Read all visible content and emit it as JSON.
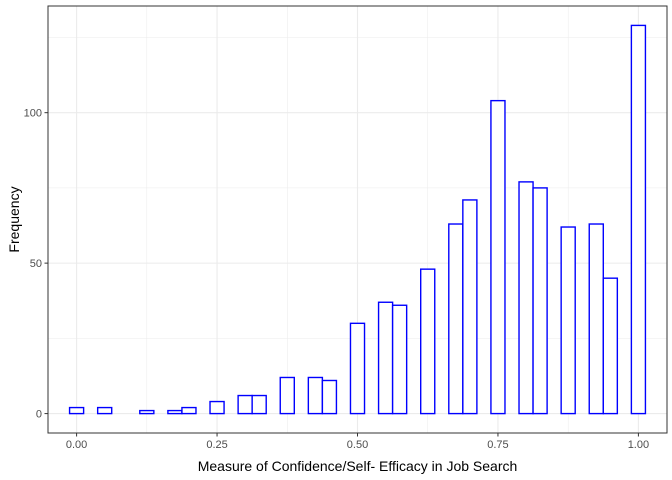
{
  "chart_data": {
    "type": "bar",
    "subtype": "histogram",
    "xlabel": "Measure of Confidence/Self- Efficacy in Job Search",
    "ylabel": "Frequency",
    "xlim": [
      -0.0125,
      1.0125
    ],
    "ylim": [
      0,
      130
    ],
    "x_ticks": [
      0.0,
      0.25,
      0.5,
      0.75,
      1.0
    ],
    "x_tick_labels": [
      "0.00",
      "0.25",
      "0.50",
      "0.75",
      "1.00"
    ],
    "y_ticks": [
      0,
      50,
      100
    ],
    "y_tick_labels": [
      "0",
      "50",
      "100"
    ],
    "bin_width": 0.025,
    "bins": [
      {
        "start": -0.0125,
        "end": 0.0125,
        "count": 2
      },
      {
        "start": 0.0125,
        "end": 0.0375,
        "count": 0
      },
      {
        "start": 0.0375,
        "end": 0.0625,
        "count": 2
      },
      {
        "start": 0.0625,
        "end": 0.0875,
        "count": 0
      },
      {
        "start": 0.0875,
        "end": 0.1125,
        "count": 0
      },
      {
        "start": 0.1125,
        "end": 0.1375,
        "count": 1
      },
      {
        "start": 0.1375,
        "end": 0.1625,
        "count": 0
      },
      {
        "start": 0.1625,
        "end": 0.1875,
        "count": 1
      },
      {
        "start": 0.1875,
        "end": 0.2125,
        "count": 2
      },
      {
        "start": 0.2125,
        "end": 0.2375,
        "count": 0
      },
      {
        "start": 0.2375,
        "end": 0.2625,
        "count": 4
      },
      {
        "start": 0.2625,
        "end": 0.2875,
        "count": 0
      },
      {
        "start": 0.2875,
        "end": 0.3125,
        "count": 6
      },
      {
        "start": 0.3125,
        "end": 0.3375,
        "count": 6
      },
      {
        "start": 0.3375,
        "end": 0.3625,
        "count": 0
      },
      {
        "start": 0.3625,
        "end": 0.3875,
        "count": 12
      },
      {
        "start": 0.3875,
        "end": 0.4125,
        "count": 0
      },
      {
        "start": 0.4125,
        "end": 0.4375,
        "count": 12
      },
      {
        "start": 0.4375,
        "end": 0.4625,
        "count": 11
      },
      {
        "start": 0.4625,
        "end": 0.4875,
        "count": 0
      },
      {
        "start": 0.4875,
        "end": 0.5125,
        "count": 30
      },
      {
        "start": 0.5125,
        "end": 0.5375,
        "count": 0
      },
      {
        "start": 0.5375,
        "end": 0.5625,
        "count": 37
      },
      {
        "start": 0.5625,
        "end": 0.5875,
        "count": 36
      },
      {
        "start": 0.5875,
        "end": 0.6125,
        "count": 0
      },
      {
        "start": 0.6125,
        "end": 0.6375,
        "count": 48
      },
      {
        "start": 0.6375,
        "end": 0.6625,
        "count": 0
      },
      {
        "start": 0.6625,
        "end": 0.6875,
        "count": 63
      },
      {
        "start": 0.6875,
        "end": 0.7125,
        "count": 71
      },
      {
        "start": 0.7125,
        "end": 0.7375,
        "count": 0
      },
      {
        "start": 0.7375,
        "end": 0.7625,
        "count": 104
      },
      {
        "start": 0.7625,
        "end": 0.7875,
        "count": 0
      },
      {
        "start": 0.7875,
        "end": 0.8125,
        "count": 77
      },
      {
        "start": 0.8125,
        "end": 0.8375,
        "count": 75
      },
      {
        "start": 0.8375,
        "end": 0.8625,
        "count": 0
      },
      {
        "start": 0.8625,
        "end": 0.8875,
        "count": 62
      },
      {
        "start": 0.8875,
        "end": 0.9125,
        "count": 0
      },
      {
        "start": 0.9125,
        "end": 0.9375,
        "count": 63
      },
      {
        "start": 0.9375,
        "end": 0.9625,
        "count": 45
      },
      {
        "start": 0.9625,
        "end": 0.9875,
        "count": 0
      },
      {
        "start": 0.9875,
        "end": 1.0125,
        "count": 129
      }
    ],
    "grid": true,
    "bar_outline_color": "#0000ff",
    "bar_fill_color": "#ffffff",
    "legend": "none"
  }
}
